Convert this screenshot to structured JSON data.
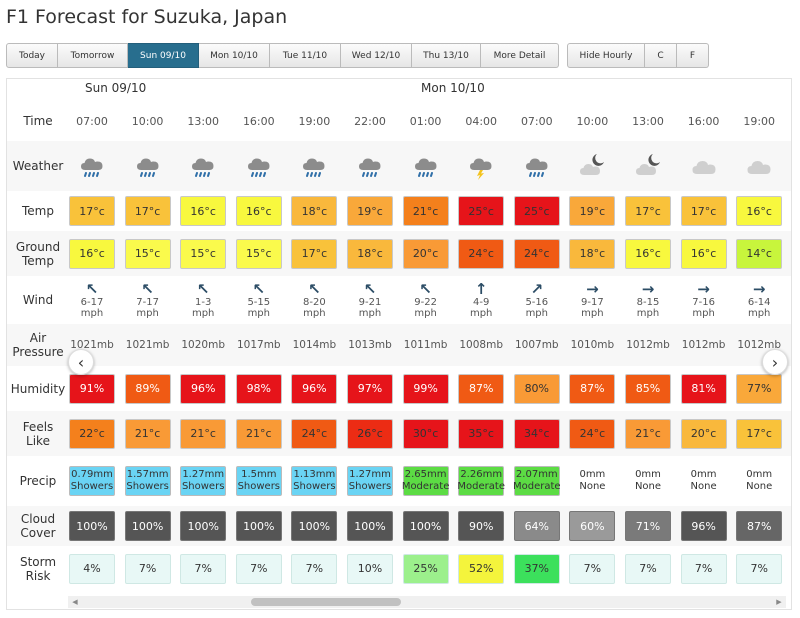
{
  "page": {
    "title": "F1 Forecast for Suzuka, Japan"
  },
  "toolbar": {
    "days": [
      {
        "label": "Today",
        "width": 52,
        "active": false
      },
      {
        "label": "Tomorrow",
        "width": 70,
        "active": false
      },
      {
        "label": "Sun 09/10",
        "width": 71,
        "active": true
      },
      {
        "label": "Mon 10/10",
        "width": 71,
        "active": false
      },
      {
        "label": "Tue 11/10",
        "width": 71,
        "active": false
      },
      {
        "label": "Wed 12/10",
        "width": 71,
        "active": false
      },
      {
        "label": "Thu 13/10",
        "width": 69,
        "active": false
      },
      {
        "label": "More Detail",
        "width": 78,
        "active": false
      }
    ],
    "options": [
      {
        "label": "Hide Hourly",
        "width": 78
      },
      {
        "label": "C",
        "width": 32
      },
      {
        "label": "F",
        "width": 32
      }
    ]
  },
  "day_headers": [
    "Sun 09/10",
    "Mon 10/10"
  ],
  "row_labels": {
    "time": "Time",
    "weather": "Weather",
    "temp": "Temp",
    "ground_temp": "Ground Temp",
    "wind": "Wind",
    "pressure": "Air Pressure",
    "humidity": "Humidity",
    "feels_like": "Feels Like",
    "precip": "Precip",
    "cloud": "Cloud Cover",
    "storm": "Storm Risk"
  },
  "colors": {
    "temp_14": "#c8f53c",
    "temp_15": "#fafa4c",
    "temp_16": "#f8f83e",
    "temp_17": "#f9c23a",
    "temp_18": "#f9b83c",
    "temp_19": "#f9a83a",
    "temp_20": "#f99a36",
    "temp_21": "#f4801c",
    "temp_22": "#f4801c",
    "temp_24": "#f05a14",
    "temp_25": "#e6141a",
    "temp_26": "#ec2c14",
    "temp_30": "#e6141a",
    "temp_34": "#e6141a",
    "temp_35": "#e6141a",
    "hum_high": "#e6141a",
    "hum_mid": "#f05a14",
    "hum_low": "#f99a36",
    "precip_showers": "#6ad4f4",
    "precip_moderate": "#5cdc44",
    "storm_low": "#e8f8f6",
    "storm_25": "#9cf08c",
    "storm_52": "#f4f43c",
    "storm_37": "#3ce05c"
  },
  "columns": [
    {
      "time": "07:00",
      "weather": "rain-cloud-icon",
      "temp": "17°c",
      "temp_color": "#f9c23a",
      "ground": "16°c",
      "ground_color": "#f8f83e",
      "wind_dir": "↖",
      "wind": "6-17",
      "wind_unit": "mph",
      "pressure": "1021mb",
      "humidity": "91%",
      "hum_color": "#e6141a",
      "hum_text_color": "#ffffff",
      "feels": "22°c",
      "feels_color": "#f4801c",
      "precip": "0.79mm",
      "precip_type": "Showers",
      "precip_color": "#6ad4f4",
      "cloud": "100%",
      "cloud_color": "#555555",
      "storm": "4%",
      "storm_color": "#e8f8f6"
    },
    {
      "time": "10:00",
      "weather": "rain-cloud-icon",
      "temp": "17°c",
      "temp_color": "#f9c23a",
      "ground": "15°c",
      "ground_color": "#fafa4c",
      "wind_dir": "↖",
      "wind": "7-17",
      "wind_unit": "mph",
      "pressure": "1021mb",
      "humidity": "89%",
      "hum_color": "#f05a14",
      "hum_text_color": "#ffffff",
      "feels": "21°c",
      "feels_color": "#f99a36",
      "precip": "1.57mm",
      "precip_type": "Showers",
      "precip_color": "#6ad4f4",
      "cloud": "100%",
      "cloud_color": "#555555",
      "storm": "7%",
      "storm_color": "#e8f8f6"
    },
    {
      "time": "13:00",
      "weather": "rain-cloud-icon",
      "temp": "16°c",
      "temp_color": "#f8f83e",
      "ground": "15°c",
      "ground_color": "#fafa4c",
      "wind_dir": "↖",
      "wind": "1-3",
      "wind_unit": "mph",
      "pressure": "1020mb",
      "humidity": "96%",
      "hum_color": "#e6141a",
      "hum_text_color": "#ffffff",
      "feels": "21°c",
      "feels_color": "#f99a36",
      "precip": "1.27mm",
      "precip_type": "Showers",
      "precip_color": "#6ad4f4",
      "cloud": "100%",
      "cloud_color": "#555555",
      "storm": "7%",
      "storm_color": "#e8f8f6"
    },
    {
      "time": "16:00",
      "weather": "rain-cloud-icon",
      "temp": "16°c",
      "temp_color": "#f8f83e",
      "ground": "15°c",
      "ground_color": "#fafa4c",
      "wind_dir": "↖",
      "wind": "5-15",
      "wind_unit": "mph",
      "pressure": "1017mb",
      "humidity": "98%",
      "hum_color": "#e6141a",
      "hum_text_color": "#ffffff",
      "feels": "21°c",
      "feels_color": "#f99a36",
      "precip": "1.5mm",
      "precip_type": "Showers",
      "precip_color": "#6ad4f4",
      "cloud": "100%",
      "cloud_color": "#555555",
      "storm": "7%",
      "storm_color": "#e8f8f6"
    },
    {
      "time": "19:00",
      "weather": "rain-cloud-icon",
      "temp": "18°c",
      "temp_color": "#f9b83c",
      "ground": "17°c",
      "ground_color": "#f9c23a",
      "wind_dir": "↖",
      "wind": "8-20",
      "wind_unit": "mph",
      "pressure": "1014mb",
      "humidity": "96%",
      "hum_color": "#e6141a",
      "hum_text_color": "#ffffff",
      "feels": "24°c",
      "feels_color": "#f05a14",
      "precip": "1.13mm",
      "precip_type": "Showers",
      "precip_color": "#6ad4f4",
      "cloud": "100%",
      "cloud_color": "#555555",
      "storm": "7%",
      "storm_color": "#e8f8f6"
    },
    {
      "time": "22:00",
      "weather": "rain-cloud-icon",
      "temp": "19°c",
      "temp_color": "#f9a83a",
      "ground": "18°c",
      "ground_color": "#f9b83c",
      "wind_dir": "↖",
      "wind": "9-21",
      "wind_unit": "mph",
      "pressure": "1013mb",
      "humidity": "97%",
      "hum_color": "#e6141a",
      "hum_text_color": "#ffffff",
      "feels": "26°c",
      "feels_color": "#ec2c14",
      "precip": "1.27mm",
      "precip_type": "Showers",
      "precip_color": "#6ad4f4",
      "cloud": "100%",
      "cloud_color": "#555555",
      "storm": "10%",
      "storm_color": "#e8f8f6"
    },
    {
      "time": "01:00",
      "weather": "rain-cloud-icon",
      "temp": "21°c",
      "temp_color": "#f4801c",
      "ground": "20°c",
      "ground_color": "#f99a36",
      "wind_dir": "↖",
      "wind": "9-22",
      "wind_unit": "mph",
      "pressure": "1011mb",
      "humidity": "99%",
      "hum_color": "#e6141a",
      "hum_text_color": "#ffffff",
      "feels": "30°c",
      "feels_color": "#e6141a",
      "precip": "2.65mm",
      "precip_type": "Moderate",
      "precip_color": "#5cdc44",
      "cloud": "100%",
      "cloud_color": "#555555",
      "storm": "25%",
      "storm_color": "#9cf08c"
    },
    {
      "time": "04:00",
      "weather": "thunder-cloud-icon",
      "temp": "25°c",
      "temp_color": "#e6141a",
      "ground": "24°c",
      "ground_color": "#f05a14",
      "wind_dir": "↑",
      "wind": "4-9",
      "wind_unit": "mph",
      "pressure": "1008mb",
      "humidity": "87%",
      "hum_color": "#f05a14",
      "hum_text_color": "#ffffff",
      "feels": "35°c",
      "feels_color": "#e6141a",
      "precip": "2.26mm",
      "precip_type": "Moderate",
      "precip_color": "#5cdc44",
      "cloud": "90%",
      "cloud_color": "#555555",
      "storm": "52%",
      "storm_color": "#f4f43c"
    },
    {
      "time": "07:00",
      "weather": "rain-cloud-icon",
      "temp": "25°c",
      "temp_color": "#e6141a",
      "ground": "24°c",
      "ground_color": "#f05a14",
      "wind_dir": "↗",
      "wind": "5-16",
      "wind_unit": "mph",
      "pressure": "1007mb",
      "humidity": "80%",
      "hum_color": "#f99a36",
      "hum_text_color": "#333333",
      "feels": "34°c",
      "feels_color": "#e6141a",
      "precip": "2.07mm",
      "precip_type": "Moderate",
      "precip_color": "#5cdc44",
      "cloud": "64%",
      "cloud_color": "#8a8a8a",
      "storm": "37%",
      "storm_color": "#3ce05c"
    },
    {
      "time": "10:00",
      "weather": "moon-cloud-icon",
      "temp": "19°c",
      "temp_color": "#f9a83a",
      "ground": "18°c",
      "ground_color": "#f9b83c",
      "wind_dir": "→",
      "wind": "9-17",
      "wind_unit": "mph",
      "pressure": "1010mb",
      "humidity": "87%",
      "hum_color": "#f05a14",
      "hum_text_color": "#ffffff",
      "feels": "24°c",
      "feels_color": "#f05a14",
      "precip": "0mm",
      "precip_type": "None",
      "precip_color": "",
      "cloud": "60%",
      "cloud_color": "#9a9a9a",
      "storm": "7%",
      "storm_color": "#e8f8f6"
    },
    {
      "time": "13:00",
      "weather": "moon-cloud-icon",
      "temp": "17°c",
      "temp_color": "#f9c23a",
      "ground": "16°c",
      "ground_color": "#f8f83e",
      "wind_dir": "→",
      "wind": "8-15",
      "wind_unit": "mph",
      "pressure": "1012mb",
      "humidity": "85%",
      "hum_color": "#f05a14",
      "hum_text_color": "#ffffff",
      "feels": "21°c",
      "feels_color": "#f99a36",
      "precip": "0mm",
      "precip_type": "None",
      "precip_color": "",
      "cloud": "71%",
      "cloud_color": "#7a7a7a",
      "storm": "7%",
      "storm_color": "#e8f8f6"
    },
    {
      "time": "16:00",
      "weather": "cloud-icon",
      "temp": "17°c",
      "temp_color": "#f9c23a",
      "ground": "16°c",
      "ground_color": "#f8f83e",
      "wind_dir": "→",
      "wind": "7-16",
      "wind_unit": "mph",
      "pressure": "1012mb",
      "humidity": "81%",
      "hum_color": "#e6141a",
      "hum_text_color": "#ffffff",
      "feels": "20°c",
      "feels_color": "#f9b83c",
      "precip": "0mm",
      "precip_type": "None",
      "precip_color": "",
      "cloud": "96%",
      "cloud_color": "#555555",
      "storm": "7%",
      "storm_color": "#e8f8f6"
    },
    {
      "time": "19:00",
      "weather": "cloud-icon",
      "temp": "16°c",
      "temp_color": "#f8f83e",
      "ground": "14°c",
      "ground_color": "#c8f53c",
      "wind_dir": "→",
      "wind": "6-14",
      "wind_unit": "mph",
      "pressure": "1012mb",
      "humidity": "77%",
      "hum_color": "#f9a83a",
      "hum_text_color": "#333333",
      "feels": "17°c",
      "feels_color": "#f9c23a",
      "precip": "0mm",
      "precip_type": "None",
      "precip_color": "",
      "cloud": "87%",
      "cloud_color": "#666666",
      "storm": "7%",
      "storm_color": "#e8f8f6"
    }
  ],
  "nav": {
    "prev": "‹",
    "next": "›"
  },
  "scroll": {
    "left": "◀",
    "right": "▶"
  }
}
